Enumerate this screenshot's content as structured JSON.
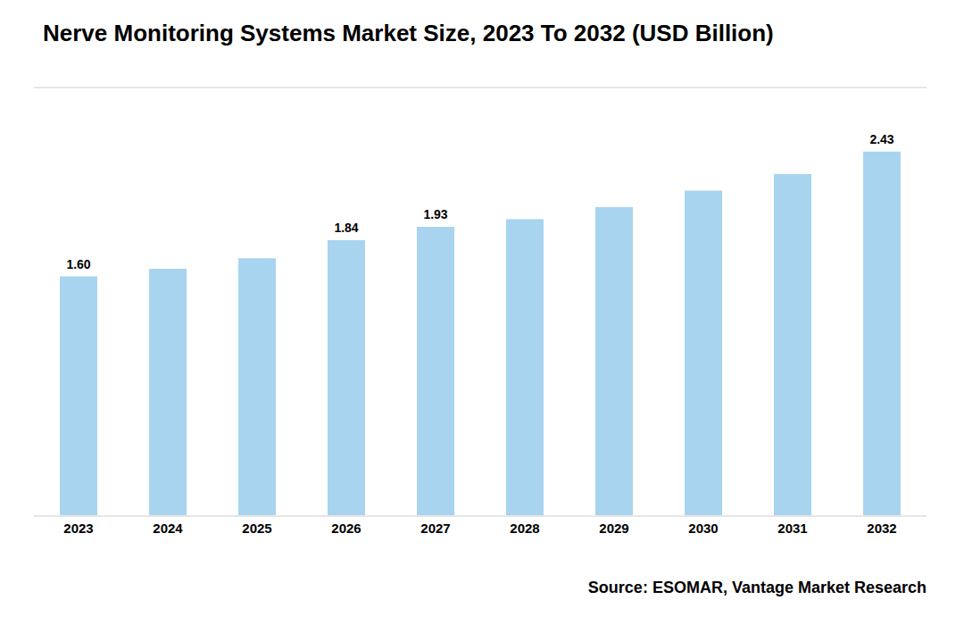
{
  "chart_data": {
    "type": "bar",
    "title": "Nerve Monitoring Systems Market Size, 2023 To 2032 (USD Billion)",
    "categories": [
      "2023",
      "2024",
      "2025",
      "2026",
      "2027",
      "2028",
      "2029",
      "2030",
      "2031",
      "2032"
    ],
    "values": [
      1.6,
      1.65,
      1.72,
      1.84,
      1.93,
      1.98,
      2.06,
      2.17,
      2.28,
      2.43
    ],
    "value_labels": [
      "1.60",
      null,
      null,
      "1.84",
      "1.93",
      null,
      null,
      null,
      null,
      "2.43"
    ],
    "color": "#a8d4f0",
    "ylim": [
      0,
      2.85
    ],
    "tick_labels": "x",
    "annotations": [
      "Source: ESOMAR, Vantage Market Research"
    ]
  }
}
